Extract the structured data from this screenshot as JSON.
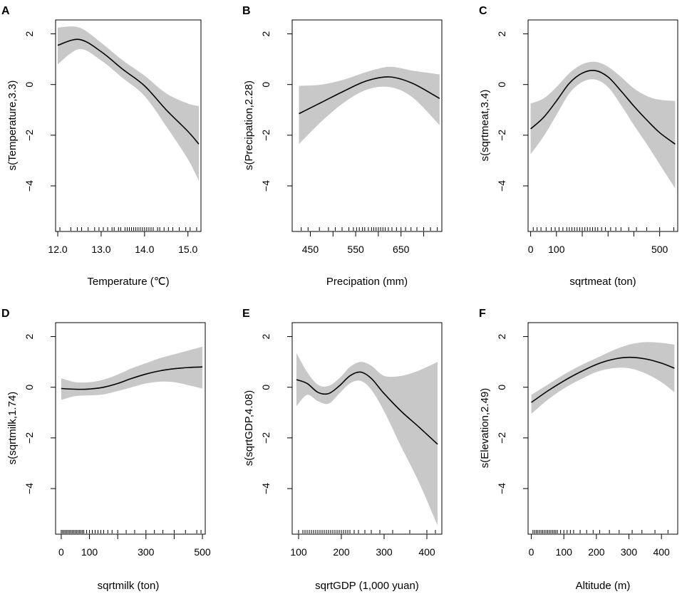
{
  "chart_data": [
    {
      "panel": "A",
      "type": "line",
      "xlabel": "Temperature (℃)",
      "ylabel": "s(Temperature,3.3)",
      "xlim": [
        11.95,
        15.3
      ],
      "ylim": [
        -5.8,
        2.55
      ],
      "xticks": [
        12,
        13,
        14,
        15
      ],
      "xtick_labels": [
        "12.0",
        "13.0",
        "14.0",
        "15.0"
      ],
      "yticks": [
        -4,
        -2,
        0,
        2
      ],
      "ytick_labels": [
        "−4",
        "−2",
        "0",
        "2"
      ],
      "x": [
        12.0,
        12.5,
        13.0,
        13.5,
        14.0,
        14.5,
        15.0,
        15.25
      ],
      "fit": [
        1.55,
        1.78,
        1.3,
        0.6,
        -0.05,
        -1.0,
        -1.85,
        -2.35
      ],
      "upper": [
        2.25,
        2.25,
        1.65,
        0.95,
        0.35,
        -0.35,
        -0.75,
        -0.85
      ],
      "lower": [
        0.8,
        1.4,
        0.95,
        0.25,
        -0.45,
        -1.65,
        -2.95,
        -3.8
      ],
      "rug": [
        12.05,
        12.3,
        12.45,
        12.55,
        12.7,
        12.85,
        12.95,
        13.05,
        13.15,
        13.25,
        13.3,
        13.4,
        13.45,
        13.55,
        13.6,
        13.65,
        13.7,
        13.75,
        13.8,
        13.85,
        13.9,
        13.95,
        14.0,
        14.05,
        14.1,
        14.15,
        14.2,
        14.3,
        14.35,
        14.45,
        14.55,
        14.65,
        14.8,
        14.95,
        15.05,
        15.2
      ]
    },
    {
      "panel": "B",
      "type": "line",
      "xlabel": "Precipation (mm)",
      "ylabel": "s(Precipation,2.28)",
      "xlim": [
        410,
        740
      ],
      "ylim": [
        -5.8,
        2.55
      ],
      "xticks": [
        450,
        500,
        550,
        600,
        650,
        700
      ],
      "xtick_labels": [
        "450",
        "",
        "550",
        "",
        "650",
        ""
      ],
      "yticks": [
        -4,
        -2,
        0,
        2
      ],
      "ytick_labels": [
        "−4",
        "−2",
        "0",
        "2"
      ],
      "x": [
        425,
        475,
        525,
        575,
        625,
        675,
        735
      ],
      "fit": [
        -1.15,
        -0.7,
        -0.25,
        0.15,
        0.3,
        0.05,
        -0.55
      ],
      "upper": [
        -0.05,
        0.0,
        0.2,
        0.5,
        0.7,
        0.55,
        0.4
      ],
      "lower": [
        -2.35,
        -1.45,
        -0.7,
        -0.2,
        -0.1,
        -0.5,
        -1.6
      ],
      "rug": [
        430,
        445,
        470,
        490,
        505,
        520,
        535,
        545,
        552,
        558,
        565,
        570,
        578,
        585,
        590,
        595,
        600,
        605,
        610,
        615,
        622,
        630,
        640,
        650,
        660,
        672,
        685,
        700,
        715,
        730
      ]
    },
    {
      "panel": "C",
      "type": "line",
      "xlabel": "sqrtmeat (ton)",
      "ylabel": "s(sqrtmeat,3.4)",
      "xlim": [
        -10,
        570
      ],
      "ylim": [
        -5.8,
        2.55
      ],
      "xticks": [
        0,
        100,
        200,
        300,
        400,
        500
      ],
      "xtick_labels": [
        "0",
        "100",
        "",
        "",
        "",
        "500"
      ],
      "yticks": [
        -4,
        -2,
        0,
        2
      ],
      "ytick_labels": [
        "−4",
        "−2",
        "0",
        "2"
      ],
      "x": [
        0,
        50,
        100,
        150,
        200,
        250,
        300,
        350,
        400,
        450,
        500,
        560
      ],
      "fit": [
        -1.75,
        -1.3,
        -0.65,
        0.05,
        0.45,
        0.55,
        0.3,
        -0.25,
        -0.85,
        -1.4,
        -1.9,
        -2.35
      ],
      "upper": [
        -0.75,
        -0.55,
        -0.1,
        0.45,
        0.8,
        0.9,
        0.7,
        0.3,
        -0.15,
        -0.45,
        -0.6,
        -0.65
      ],
      "lower": [
        -2.75,
        -2.05,
        -1.2,
        -0.35,
        0.1,
        0.2,
        -0.1,
        -0.8,
        -1.6,
        -2.35,
        -3.15,
        -4.1
      ],
      "rug": [
        10,
        25,
        40,
        60,
        80,
        95,
        110,
        125,
        140,
        150,
        160,
        170,
        180,
        190,
        200,
        210,
        220,
        230,
        240,
        250,
        260,
        275,
        290,
        310,
        330,
        350,
        380,
        410,
        450,
        500,
        555
      ]
    },
    {
      "panel": "D",
      "type": "line",
      "xlabel": "sqrtmilk (ton)",
      "ylabel": "s(sqrtmilk,1.74)",
      "xlim": [
        -20,
        510
      ],
      "ylim": [
        -5.8,
        2.55
      ],
      "xticks": [
        0,
        100,
        200,
        300,
        400,
        500
      ],
      "xtick_labels": [
        "0",
        "100",
        "",
        "300",
        "",
        "500"
      ],
      "yticks": [
        -4,
        -2,
        0,
        2
      ],
      "ytick_labels": [
        "−4",
        "−2",
        "0",
        "2"
      ],
      "x": [
        0,
        50,
        100,
        150,
        200,
        250,
        300,
        350,
        400,
        450,
        500
      ],
      "fit": [
        -0.05,
        -0.08,
        -0.07,
        0.0,
        0.15,
        0.35,
        0.52,
        0.65,
        0.73,
        0.78,
        0.8
      ],
      "upper": [
        0.35,
        0.2,
        0.2,
        0.3,
        0.5,
        0.75,
        0.95,
        1.15,
        1.3,
        1.45,
        1.6
      ],
      "lower": [
        -0.5,
        -0.35,
        -0.32,
        -0.28,
        -0.15,
        0.0,
        0.15,
        0.22,
        0.2,
        0.08,
        -0.05
      ],
      "rug": [
        0,
        5,
        10,
        15,
        20,
        25,
        30,
        35,
        40,
        45,
        50,
        55,
        60,
        65,
        70,
        75,
        80,
        90,
        100,
        110,
        120,
        130,
        140,
        150,
        165,
        180,
        200,
        230,
        260,
        300,
        330,
        360,
        400,
        440,
        480,
        495
      ]
    },
    {
      "panel": "E",
      "type": "line",
      "xlabel": "sqrtGDP (1,000 yuan)",
      "ylabel": "s(sqrtGDP,4.08)",
      "xlim": [
        85,
        435
      ],
      "ylim": [
        -5.8,
        2.55
      ],
      "xticks": [
        100,
        200,
        300,
        400
      ],
      "xtick_labels": [
        "100",
        "200",
        "300",
        "400"
      ],
      "yticks": [
        -4,
        -2,
        0,
        2
      ],
      "ytick_labels": [
        "−4",
        "−2",
        "0",
        "2"
      ],
      "x": [
        95,
        120,
        145,
        170,
        195,
        220,
        245,
        270,
        300,
        340,
        380,
        425
      ],
      "fit": [
        0.3,
        0.15,
        -0.2,
        -0.25,
        0.05,
        0.45,
        0.6,
        0.35,
        -0.25,
        -0.95,
        -1.55,
        -2.25
      ],
      "upper": [
        1.35,
        0.6,
        0.1,
        0.05,
        0.35,
        0.8,
        1.0,
        0.85,
        0.45,
        0.45,
        0.65,
        1.0
      ],
      "lower": [
        -0.75,
        -0.3,
        -0.55,
        -0.65,
        -0.25,
        0.15,
        0.25,
        -0.1,
        -0.95,
        -2.35,
        -3.7,
        -5.45
      ],
      "rug": [
        100,
        110,
        115,
        120,
        125,
        130,
        135,
        140,
        145,
        150,
        155,
        160,
        165,
        170,
        175,
        180,
        185,
        190,
        195,
        200,
        205,
        210,
        215,
        220,
        230,
        240,
        255,
        270,
        290,
        320,
        360,
        400,
        420
      ]
    },
    {
      "panel": "F",
      "type": "line",
      "xlabel": "Altitude (m)",
      "ylabel": "s(Elevation,2.49)",
      "xlim": [
        -10,
        450
      ],
      "ylim": [
        -5.8,
        2.55
      ],
      "xticks": [
        0,
        100,
        200,
        300,
        400
      ],
      "xtick_labels": [
        "0",
        "100",
        "200",
        "300",
        "400"
      ],
      "yticks": [
        -4,
        -2,
        0,
        2
      ],
      "ytick_labels": [
        "−4",
        "−2",
        "0",
        "2"
      ],
      "x": [
        0,
        50,
        100,
        150,
        200,
        250,
        300,
        350,
        400,
        440
      ],
      "fit": [
        -0.6,
        -0.15,
        0.25,
        0.6,
        0.9,
        1.1,
        1.18,
        1.12,
        0.95,
        0.75
      ],
      "upper": [
        -0.3,
        0.1,
        0.5,
        0.85,
        1.15,
        1.45,
        1.68,
        1.78,
        1.75,
        1.68
      ],
      "lower": [
        -1.05,
        -0.5,
        -0.05,
        0.3,
        0.6,
        0.75,
        0.75,
        0.55,
        0.2,
        -0.2
      ],
      "rug": [
        5,
        10,
        15,
        20,
        25,
        30,
        35,
        40,
        45,
        50,
        55,
        60,
        65,
        70,
        75,
        80,
        90,
        100,
        110,
        120,
        130,
        150,
        170,
        190,
        210,
        240,
        270,
        310,
        340,
        380,
        420
      ]
    }
  ]
}
